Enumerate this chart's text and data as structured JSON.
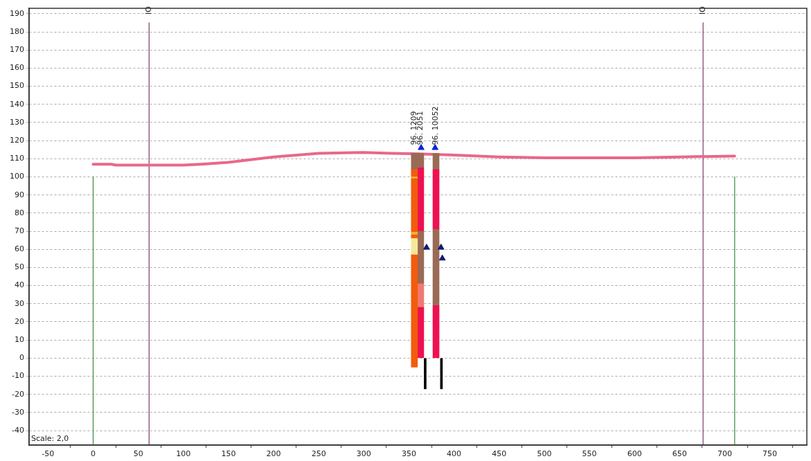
{
  "chart_data": {
    "type": "line",
    "xlim": [
      -71,
      791
    ],
    "ylim": [
      -48,
      193
    ],
    "xticks": [
      -50,
      0,
      50,
      100,
      150,
      200,
      250,
      300,
      350,
      400,
      450,
      500,
      550,
      600,
      650,
      700,
      750
    ],
    "yticks": [
      -40,
      -30,
      -20,
      -10,
      0,
      10,
      20,
      30,
      40,
      50,
      60,
      70,
      80,
      90,
      100,
      110,
      120,
      130,
      140,
      150,
      160,
      170,
      180,
      190
    ],
    "grid": "y",
    "legend": false,
    "series": [
      {
        "color": "#e8688a",
        "x": [
          0,
          20,
          25,
          100,
          120,
          150,
          200,
          250,
          300,
          330,
          360,
          400,
          450,
          500,
          600,
          650,
          711
        ],
        "values": [
          107,
          107,
          106.5,
          106.5,
          107,
          108,
          111,
          113,
          113.5,
          113,
          112.7,
          112,
          111,
          110.5,
          110.5,
          111,
          111.5
        ]
      },
      {
        "type": "line",
        "color": "#3a8a3a",
        "x": [
          0,
          0
        ],
        "values": [
          -48,
          100
        ]
      },
      {
        "type": "line",
        "color": "#7a3a6a",
        "x": [
          62,
          62
        ],
        "values": [
          -48,
          185
        ]
      },
      {
        "type": "line",
        "color": "#7a3a6a",
        "x": [
          676,
          676
        ],
        "values": [
          -48,
          185
        ]
      },
      {
        "type": "line",
        "color": "#3a8a3a",
        "x": [
          711,
          711
        ],
        "values": [
          -48,
          100
        ]
      },
      {
        "type": "bar",
        "x": [
          356
        ],
        "base": [
          -5
        ],
        "values": [
          62
        ],
        "color": "#f25c0c"
      },
      {
        "type": "bar",
        "x": [
          356
        ],
        "base": [
          57
        ],
        "values": [
          9
        ],
        "color": "#f5e89a"
      },
      {
        "type": "bar",
        "x": [
          356
        ],
        "base": [
          66
        ],
        "values": [
          2
        ],
        "color": "#f25c0c"
      },
      {
        "type": "bar",
        "x": [
          356
        ],
        "base": [
          68
        ],
        "values": [
          1.5
        ],
        "color": "#f5b030"
      },
      {
        "type": "bar",
        "x": [
          356
        ],
        "base": [
          69.5
        ],
        "values": [
          29.5
        ],
        "color": "#f25c0c"
      },
      {
        "type": "bar",
        "x": [
          356
        ],
        "base": [
          99
        ],
        "values": [
          1
        ],
        "color": "#f5b030"
      },
      {
        "type": "bar",
        "x": [
          356
        ],
        "base": [
          100
        ],
        "values": [
          4
        ],
        "color": "#f25c0c"
      },
      {
        "type": "bar",
        "x": [
          356
        ],
        "base": [
          104
        ],
        "values": [
          9
        ],
        "color": "#9a6a55"
      },
      {
        "type": "bar",
        "x": [
          363
        ],
        "base": [
          0
        ],
        "values": [
          28
        ],
        "color": "#ee1050"
      },
      {
        "type": "bar",
        "x": [
          363
        ],
        "base": [
          28
        ],
        "values": [
          13
        ],
        "color": "#f07a70"
      },
      {
        "type": "bar",
        "x": [
          363
        ],
        "base": [
          41
        ],
        "values": [
          29
        ],
        "color": "#9a6a55"
      },
      {
        "type": "bar",
        "x": [
          363
        ],
        "base": [
          70
        ],
        "values": [
          35
        ],
        "color": "#ee1050"
      },
      {
        "type": "bar",
        "x": [
          363
        ],
        "base": [
          105
        ],
        "values": [
          8
        ],
        "color": "#9a6a55"
      },
      {
        "type": "bar",
        "x": [
          380
        ],
        "base": [
          0
        ],
        "values": [
          29
        ],
        "color": "#ee1050"
      },
      {
        "type": "bar",
        "x": [
          380
        ],
        "base": [
          29
        ],
        "values": [
          42
        ],
        "color": "#9a6a55"
      },
      {
        "type": "bar",
        "x": [
          380
        ],
        "base": [
          71
        ],
        "values": [
          33
        ],
        "color": "#ee1050"
      },
      {
        "type": "bar",
        "x": [
          380
        ],
        "base": [
          104
        ],
        "values": [
          9
        ],
        "color": "#9a6a55"
      },
      {
        "type": "bar",
        "x": [
          368,
          386
        ],
        "base": [
          0,
          0
        ],
        "values": [
          -17,
          -17
        ],
        "color": "#000000"
      },
      {
        "type": "scatter",
        "marker": "triangle",
        "color": "#1020e0",
        "x": [
          363.5,
          379
        ],
        "values": [
          116,
          116
        ]
      },
      {
        "type": "scatter",
        "marker": "triangle",
        "color": "#101a70",
        "x": [
          369.5,
          385.5,
          387
        ],
        "values": [
          61,
          61,
          55
        ]
      }
    ],
    "annotations": [
      {
        "text": "IO",
        "x": 62,
        "y": 185
      },
      {
        "text": "IO",
        "x": 676,
        "y": 185
      },
      {
        "text": "96. 1209",
        "x": 356,
        "y": 113
      },
      {
        "text": "96. 2051",
        "x": 363,
        "y": 113
      },
      {
        "text": "96. 10052",
        "x": 380,
        "y": 113
      },
      "Scale: 2,0"
    ]
  }
}
